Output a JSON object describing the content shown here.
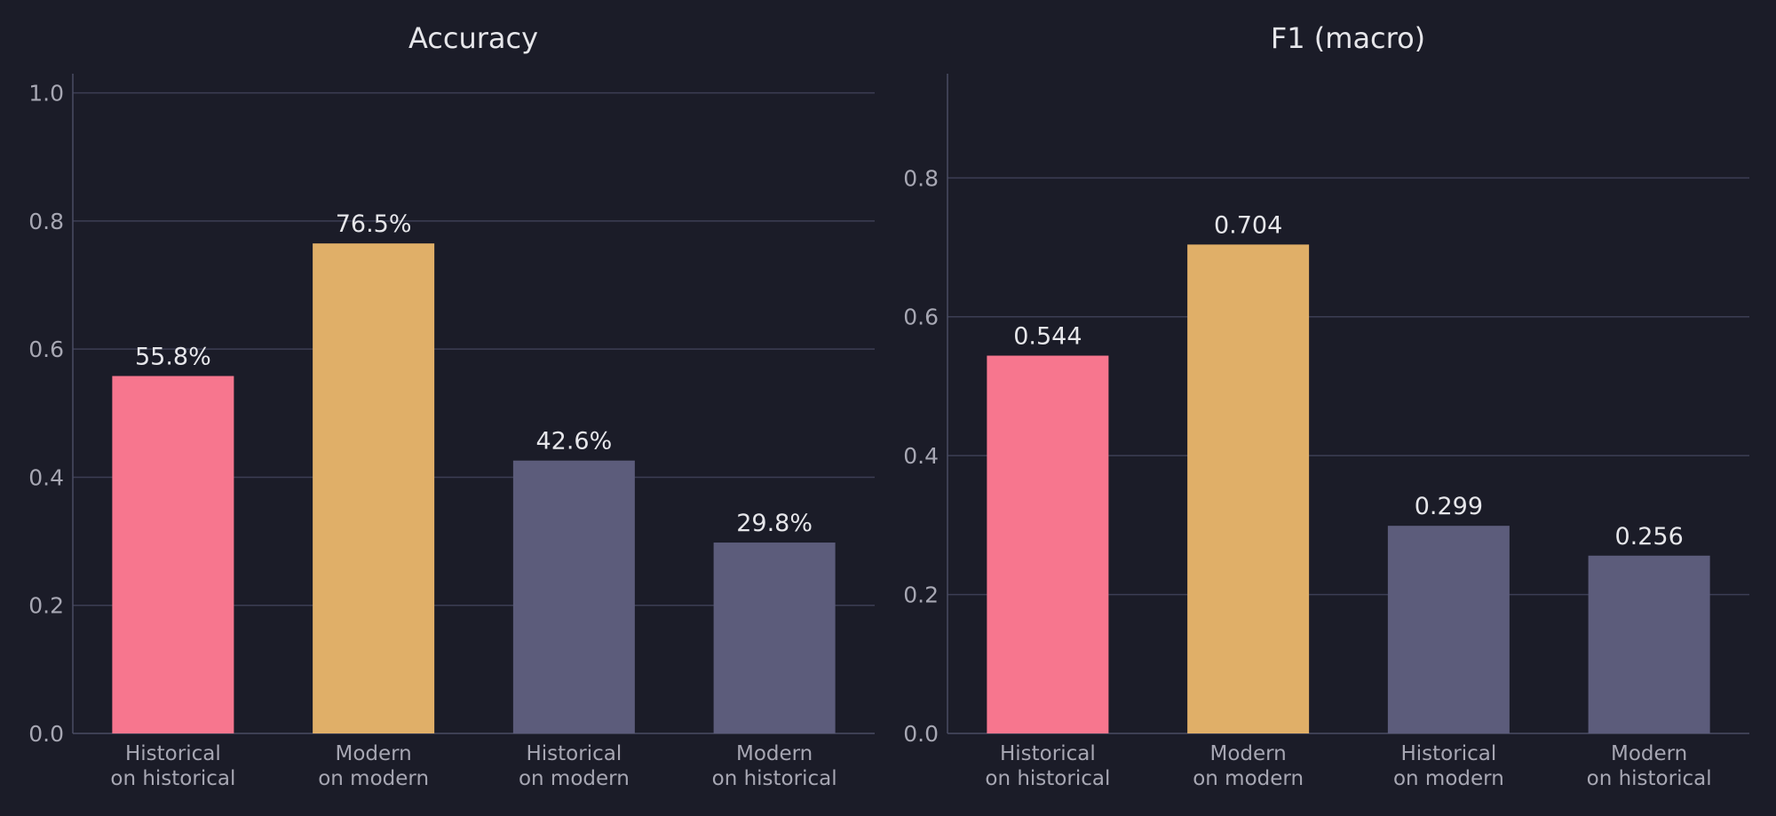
{
  "chart_data": [
    {
      "type": "bar",
      "title": "Accuracy",
      "categories": [
        [
          "Historical",
          "on historical"
        ],
        [
          "Modern",
          "on modern"
        ],
        [
          "Historical",
          "on modern"
        ],
        [
          "Modern",
          "on historical"
        ]
      ],
      "values": [
        0.558,
        0.765,
        0.426,
        0.298
      ],
      "value_labels": [
        "55.8%",
        "76.5%",
        "42.6%",
        "29.8%"
      ],
      "ylim": [
        0,
        1.03
      ],
      "yticks": [
        0.0,
        0.2,
        0.4,
        0.6,
        0.8,
        1.0
      ],
      "ytick_labels": [
        "0.0",
        "0.2",
        "0.4",
        "0.6",
        "0.8",
        "1.0"
      ],
      "grid": true
    },
    {
      "type": "bar",
      "title": "F1 (macro)",
      "categories": [
        [
          "Historical",
          "on historical"
        ],
        [
          "Modern",
          "on modern"
        ],
        [
          "Historical",
          "on modern"
        ],
        [
          "Modern",
          "on historical"
        ]
      ],
      "values": [
        0.544,
        0.704,
        0.299,
        0.256
      ],
      "value_labels": [
        "0.544",
        "0.704",
        "0.299",
        "0.256"
      ],
      "ylim": [
        0,
        0.95
      ],
      "yticks": [
        0.0,
        0.2,
        0.4,
        0.6,
        0.8
      ],
      "ytick_labels": [
        "0.0",
        "0.2",
        "0.4",
        "0.6",
        "0.8"
      ],
      "grid": true
    }
  ],
  "colors": {
    "background": "#1b1c28",
    "bars": [
      "#f7768e",
      "#e0af68",
      "#5c5c7b",
      "#5c5c7b"
    ],
    "grid": "#3c3e54",
    "text": "#e6e6ea",
    "tick_text": "#a7a7b3"
  }
}
